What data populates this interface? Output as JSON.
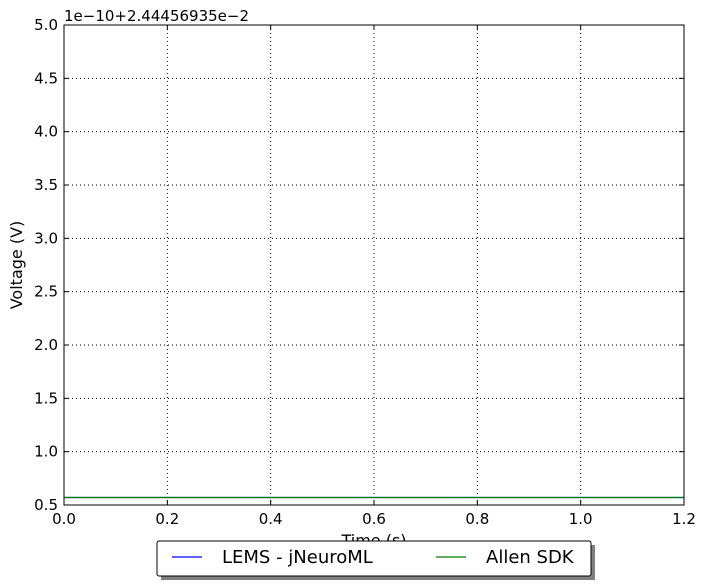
{
  "chart_data": {
    "type": "line",
    "title": "",
    "xlabel": "Time (s)",
    "ylabel": "Voltage (V)",
    "y_offset_text": "1e−10+2.44456935e−2",
    "xlim": [
      0.0,
      1.2
    ],
    "ylim": [
      0.5,
      5.0
    ],
    "xticks": [
      0.0,
      0.2,
      0.4,
      0.6,
      0.8,
      1.0,
      1.2
    ],
    "xtick_labels": [
      "0.0",
      "0.2",
      "0.4",
      "0.6",
      "0.8",
      "1.0",
      "1.2"
    ],
    "yticks": [
      0.5,
      1.0,
      1.5,
      2.0,
      2.5,
      3.0,
      3.5,
      4.0,
      4.5,
      5.0
    ],
    "ytick_labels": [
      "0.5",
      "1.0",
      "1.5",
      "2.0",
      "2.5",
      "3.0",
      "3.5",
      "4.0",
      "4.5",
      "5.0"
    ],
    "grid": true,
    "legend_position": "bottom-center",
    "series": [
      {
        "name": "LEMS - jNeuroML",
        "color": "#0000ff",
        "x": [
          0.0,
          1.2
        ],
        "y": [
          0.57,
          0.57
        ]
      },
      {
        "name": "Allen SDK",
        "color": "#008000",
        "x": [
          0.0,
          1.2
        ],
        "y": [
          0.57,
          0.57
        ]
      }
    ]
  }
}
